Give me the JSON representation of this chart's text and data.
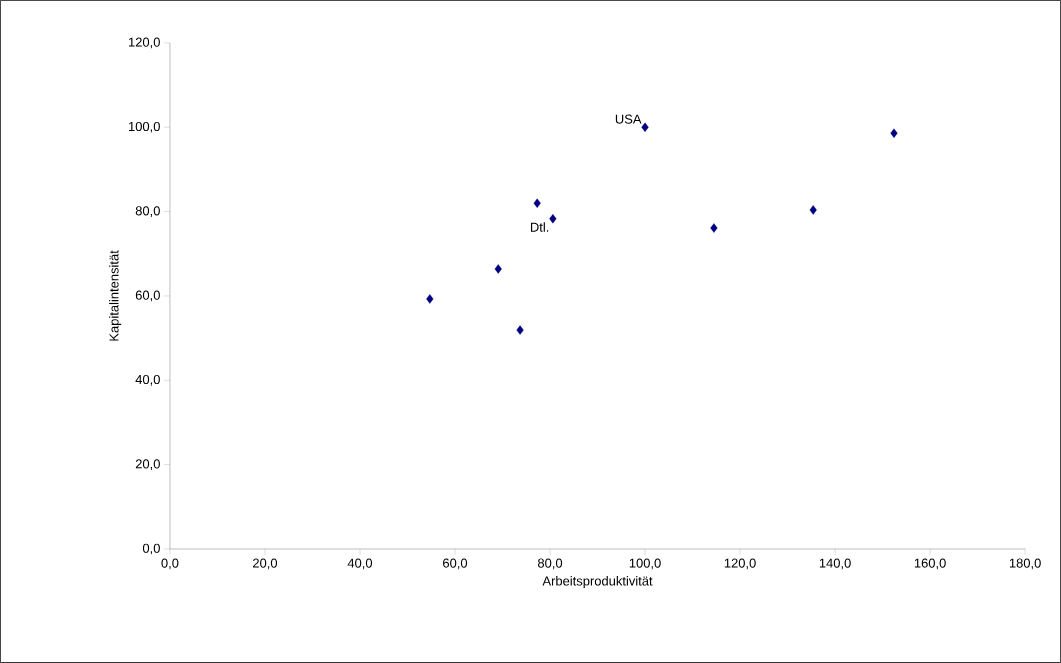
{
  "chart_data": {
    "type": "scatter",
    "xlabel": "Arbeitsproduktivität",
    "ylabel": "Kapitalintensität",
    "x": [
      54.7,
      69.1,
      73.7,
      77.3,
      80.6,
      100,
      114.5,
      135.4,
      152.4
    ],
    "values": [
      59.3,
      66.4,
      51.9,
      82.0,
      78.3,
      100,
      76.1,
      80.4,
      98.6
    ],
    "color": "#000080",
    "marker": "diamond",
    "xlim": [
      0,
      180
    ],
    "ylim": [
      0,
      120
    ],
    "xticks": [
      {
        "value": 0,
        "label": "0,0"
      },
      {
        "value": 20,
        "label": "20,0"
      },
      {
        "value": 40,
        "label": "40,0"
      },
      {
        "value": 60,
        "label": "60,0"
      },
      {
        "value": 80,
        "label": "80,0"
      },
      {
        "value": 100,
        "label": "100,0"
      },
      {
        "value": 120,
        "label": "120,0"
      },
      {
        "value": 140,
        "label": "140,0"
      },
      {
        "value": 160,
        "label": "160,0"
      },
      {
        "value": 180,
        "label": "180,0"
      }
    ],
    "yticks": [
      {
        "value": 0,
        "label": "0,0"
      },
      {
        "value": 20,
        "label": "20,0"
      },
      {
        "value": 40,
        "label": "40,0"
      },
      {
        "value": 60,
        "label": "60,0"
      },
      {
        "value": 80,
        "label": "80,0"
      },
      {
        "value": 100,
        "label": "100,0"
      },
      {
        "value": 120,
        "label": "120,0"
      }
    ],
    "annotations": [
      {
        "text": "USA",
        "x": 100,
        "y": 100
      },
      {
        "text": "Dtl.",
        "x": 80.6,
        "y": 78.3
      }
    ]
  }
}
